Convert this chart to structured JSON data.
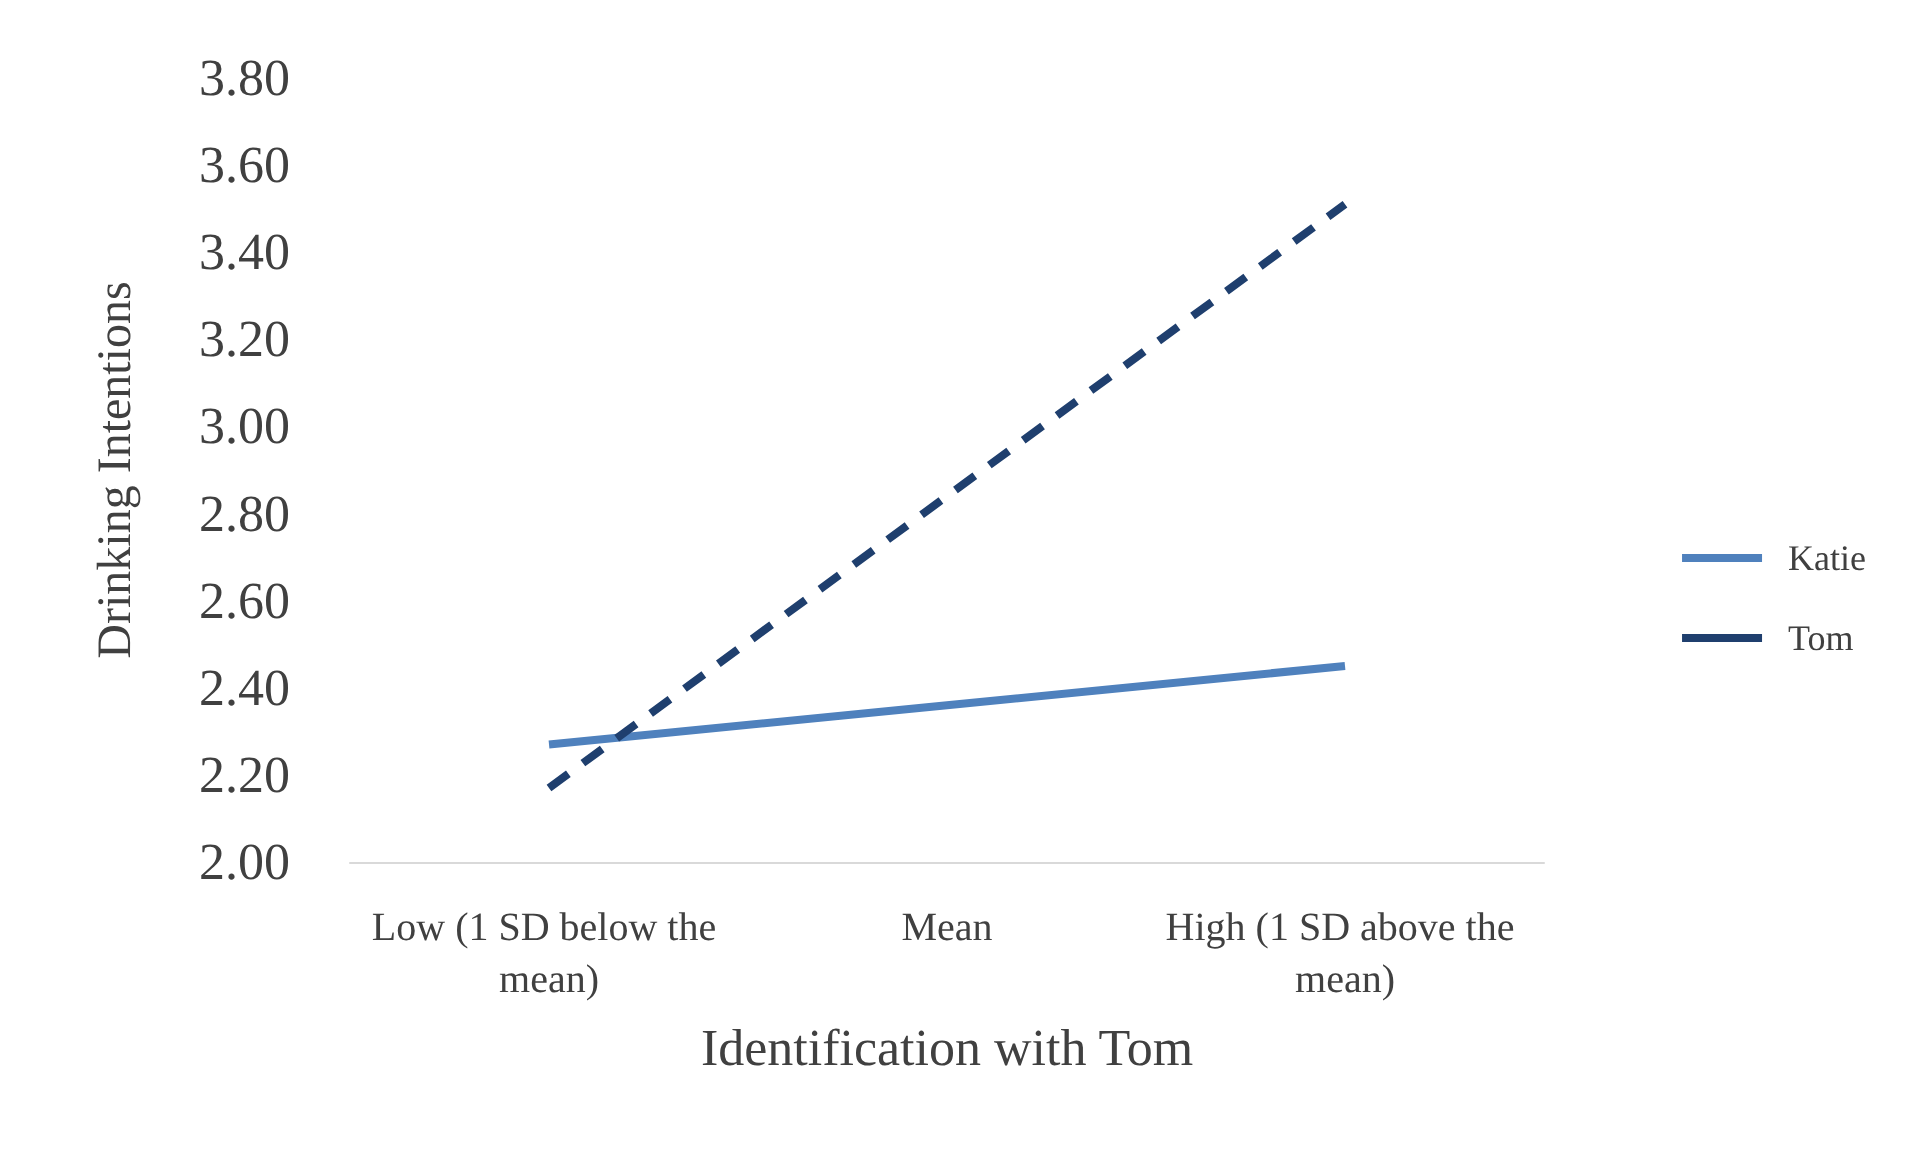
{
  "chart_data": {
    "type": "line",
    "xlabel": "Identification with Tom",
    "ylabel": "Drinking Intentions",
    "categories": [
      "Low (1 SD below the mean)",
      "Mean",
      "High (1 SD above the mean)"
    ],
    "series": [
      {
        "name": "Katie",
        "color": "#4f81bd",
        "values": [
          2.27,
          2.36,
          2.45
        ],
        "line_style": "solid"
      },
      {
        "name": "Tom",
        "color": "#1f3f6e",
        "values": [
          2.17,
          2.84,
          3.51
        ],
        "line_style": "dashed"
      }
    ],
    "ylim": [
      2.0,
      3.8
    ],
    "yticks": [
      {
        "value": 2.0,
        "label": "2.00"
      },
      {
        "value": 2.2,
        "label": "2.20"
      },
      {
        "value": 2.4,
        "label": "2.40"
      },
      {
        "value": 2.6,
        "label": "2.60"
      },
      {
        "value": 2.8,
        "label": "2.80"
      },
      {
        "value": 3.0,
        "label": "3.00"
      },
      {
        "value": 3.2,
        "label": "3.20"
      },
      {
        "value": 3.4,
        "label": "3.40"
      },
      {
        "value": 3.6,
        "label": "3.60"
      },
      {
        "value": 3.8,
        "label": "3.80"
      }
    ],
    "grid": false,
    "legend": "right",
    "marker": "none"
  }
}
